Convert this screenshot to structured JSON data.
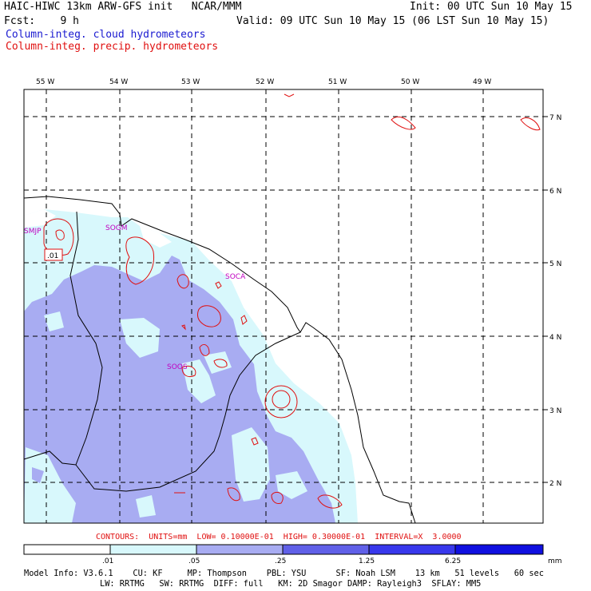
{
  "header": {
    "line1_left": "HAIC-HIWC 13km ARW-GFS init   NCAR/MMM",
    "line1_right": "Init: 00 UTC Sun 10 May 15",
    "line2_left": "Fcst:    9 h",
    "line2_right": "Valid: 09 UTC Sun 10 May 15 (06 LST Sun 10 May 15)",
    "line3": "Column-integ. cloud hydrometeors",
    "line4": "Column-integ. precip. hydrometeors"
  },
  "map": {
    "lon_labels": [
      "55 W",
      "54 W",
      "53 W",
      "52 W",
      "51 W",
      "50 W",
      "49 W"
    ],
    "lat_labels": [
      "7 N",
      "6 N",
      "5 N",
      "4 N",
      "3 N",
      "2 N"
    ],
    "stations": [
      "SMJP",
      "SOGM",
      "SOCA",
      "SOOS"
    ],
    "contour_label": ".01",
    "colors": {
      "shade_light": "#d8f8fc",
      "shade_mid": "#a8acf2",
      "contour": "#e01010",
      "station": "#c000c0"
    }
  },
  "contours_line": "CONTOURS:  UNITS=mm  LOW= 0.10000E-01  HIGH= 0.30000E-01  INTERVAL=X  3.0000",
  "colorbar": {
    "ticks": [
      ".01",
      ".05",
      ".25",
      "1.25",
      "6.25"
    ],
    "units": "mm",
    "colors": [
      "#ffffff",
      "#d8f8fc",
      "#a8acf2",
      "#6060e8",
      "#3838ec",
      "#1010e0"
    ]
  },
  "footer": {
    "line1": "Model Info: V3.6.1    CU: KF     MP: Thompson    PBL: YSU      SF: Noah LSM    13 km   51 levels   60 sec",
    "line2": "LW: RRTMG   SW: RRTMG  DIFF: full   KM: 2D Smagor DAMP: Rayleigh3  SFLAY: MM5"
  }
}
